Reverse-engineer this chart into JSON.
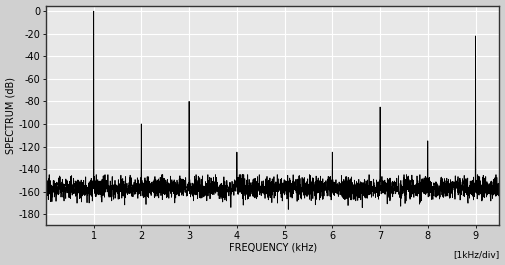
{
  "xlim": [
    0,
    9.5
  ],
  "ylim": [
    -190,
    5
  ],
  "yticks": [
    0,
    -20,
    -40,
    -60,
    -80,
    -100,
    -120,
    -140,
    -160,
    -180
  ],
  "xticks": [
    1,
    2,
    3,
    4,
    5,
    6,
    7,
    8,
    9
  ],
  "xlabel": "FREQUENCY (kHz)",
  "xlabel2": "[1kHz/div]",
  "ylabel": "SPECTRUM (dB)",
  "noise_floor": -157,
  "noise_std": 5,
  "harmonic_freqs": [
    1,
    2,
    3,
    4,
    6,
    7,
    8,
    9
  ],
  "harmonic_peaks": [
    0,
    -100,
    -80,
    -125,
    -125,
    -85,
    -115,
    -22
  ],
  "bg_color": "#d0d0d0",
  "plot_bg": "#e8e8e8",
  "grid_color": "#ffffff",
  "line_color": "#000000",
  "fig_width": 5.05,
  "fig_height": 2.65
}
